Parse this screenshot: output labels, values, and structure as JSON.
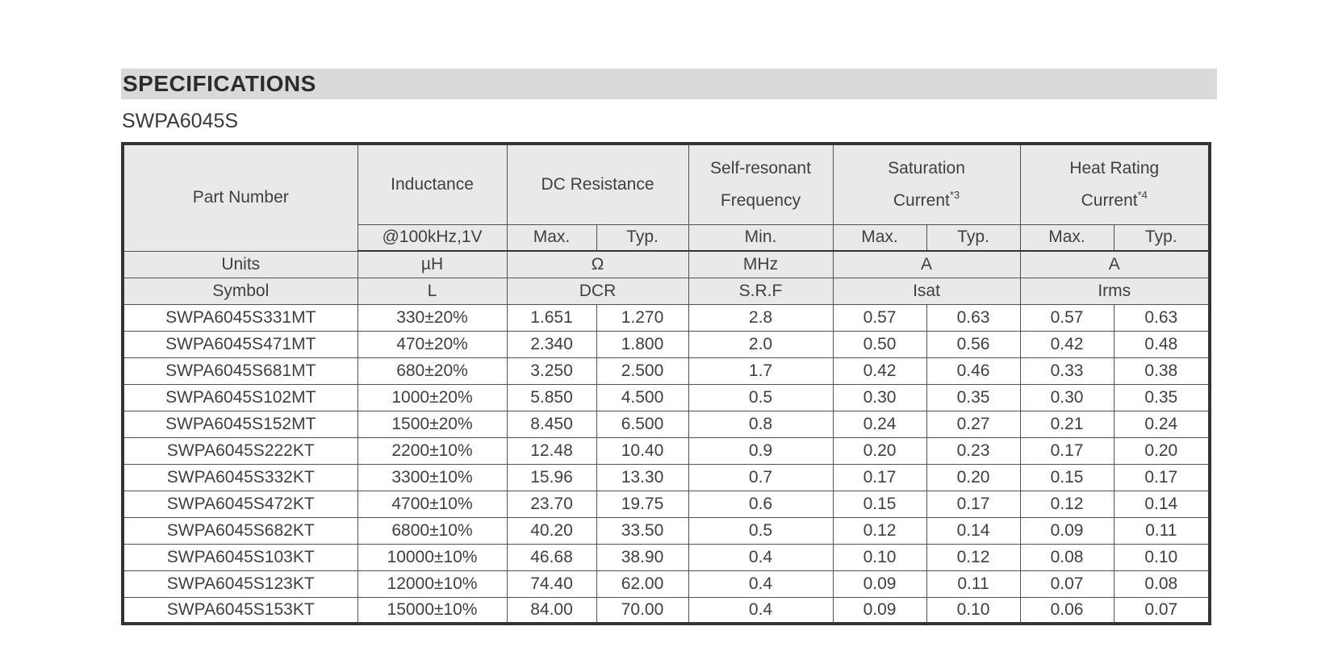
{
  "page": {
    "section_title": "SPECIFICATIONS",
    "series_name": "SWPA6045S"
  },
  "colors": {
    "section_bar_bg": "#d9dadb",
    "header_cell_bg": "#e8e9ea",
    "table_border": "#333436",
    "text": "#404042"
  },
  "table": {
    "header": {
      "part_number": "Part Number",
      "inductance": {
        "label": "Inductance",
        "condition": "@100kHz,1V"
      },
      "dc_resistance": {
        "label": "DC Resistance",
        "max": "Max.",
        "typ": "Typ."
      },
      "self_resonant": {
        "line1": "Self-resonant",
        "line2": "Frequency",
        "min": "Min."
      },
      "saturation": {
        "line1": "Saturation",
        "line2": "Current",
        "footnote": "*3",
        "max": "Max.",
        "typ": "Typ."
      },
      "heat_rating": {
        "line1": "Heat Rating",
        "line2": "Current",
        "footnote": "*4",
        "max": "Max.",
        "typ": "Typ."
      }
    },
    "units_row": {
      "label": "Units",
      "inductance": "µH",
      "dcr": "Ω",
      "srf": "MHz",
      "isat": "A",
      "irms": "A"
    },
    "symbol_row": {
      "label": "Symbol",
      "inductance": "L",
      "dcr": "DCR",
      "srf": "S.R.F",
      "isat": "Isat",
      "irms": "Irms"
    },
    "rows": [
      [
        "SWPA6045S331MT",
        "330±20%",
        "1.651",
        "1.270",
        "2.8",
        "0.57",
        "0.63",
        "0.57",
        "0.63"
      ],
      [
        "SWPA6045S471MT",
        "470±20%",
        "2.340",
        "1.800",
        "2.0",
        "0.50",
        "0.56",
        "0.42",
        "0.48"
      ],
      [
        "SWPA6045S681MT",
        "680±20%",
        "3.250",
        "2.500",
        "1.7",
        "0.42",
        "0.46",
        "0.33",
        "0.38"
      ],
      [
        "SWPA6045S102MT",
        "1000±20%",
        "5.850",
        "4.500",
        "0.5",
        "0.30",
        "0.35",
        "0.30",
        "0.35"
      ],
      [
        "SWPA6045S152MT",
        "1500±20%",
        "8.450",
        "6.500",
        "0.8",
        "0.24",
        "0.27",
        "0.21",
        "0.24"
      ],
      [
        "SWPA6045S222KT",
        "2200±10%",
        "12.48",
        "10.40",
        "0.9",
        "0.20",
        "0.23",
        "0.17",
        "0.20"
      ],
      [
        "SWPA6045S332KT",
        "3300±10%",
        "15.96",
        "13.30",
        "0.7",
        "0.17",
        "0.20",
        "0.15",
        "0.17"
      ],
      [
        "SWPA6045S472KT",
        "4700±10%",
        "23.70",
        "19.75",
        "0.6",
        "0.15",
        "0.17",
        "0.12",
        "0.14"
      ],
      [
        "SWPA6045S682KT",
        "6800±10%",
        "40.20",
        "33.50",
        "0.5",
        "0.12",
        "0.14",
        "0.09",
        "0.11"
      ],
      [
        "SWPA6045S103KT",
        "10000±10%",
        "46.68",
        "38.90",
        "0.4",
        "0.10",
        "0.12",
        "0.08",
        "0.10"
      ],
      [
        "SWPA6045S123KT",
        "12000±10%",
        "74.40",
        "62.00",
        "0.4",
        "0.09",
        "0.11",
        "0.07",
        "0.08"
      ],
      [
        "SWPA6045S153KT",
        "15000±10%",
        "84.00",
        "70.00",
        "0.4",
        "0.09",
        "0.10",
        "0.06",
        "0.07"
      ]
    ]
  }
}
